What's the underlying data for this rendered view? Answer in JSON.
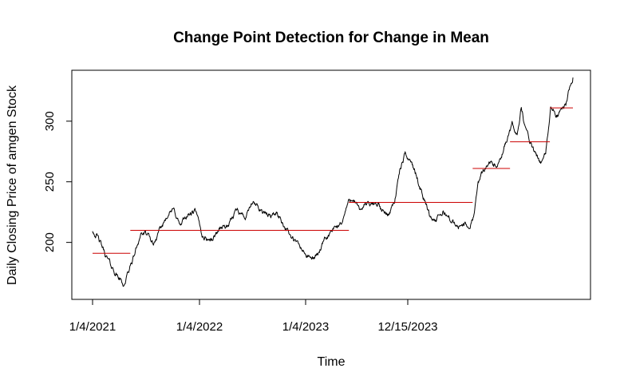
{
  "chart_data": {
    "type": "line",
    "title": "Change Point Detection for Change in Mean",
    "xlabel": "Time",
    "ylabel": "Daily Closing Price of amgen Stock",
    "x_ticks": [
      "1/4/2021",
      "1/4/2022",
      "1/4/2023",
      "12/15/2023"
    ],
    "y_ticks": [
      200,
      250,
      300
    ],
    "ylim": [
      153,
      342
    ],
    "grid": false,
    "colors": {
      "series": "#000000",
      "segment_means": "#cc0000"
    },
    "series": [
      {
        "values": [
          [
            0,
            210
          ],
          [
            10,
            206
          ],
          [
            20,
            198
          ],
          [
            30,
            190
          ],
          [
            45,
            180
          ],
          [
            60,
            172
          ],
          [
            75,
            165
          ],
          [
            85,
            175
          ],
          [
            100,
            190
          ],
          [
            115,
            208
          ],
          [
            130,
            206
          ],
          [
            145,
            198
          ],
          [
            165,
            212
          ],
          [
            180,
            225
          ],
          [
            195,
            226
          ],
          [
            210,
            213
          ],
          [
            225,
            222
          ],
          [
            245,
            225
          ],
          [
            262,
            205
          ],
          [
            285,
            202
          ],
          [
            305,
            213
          ],
          [
            325,
            213
          ],
          [
            345,
            229
          ],
          [
            365,
            220
          ],
          [
            380,
            232
          ],
          [
            398,
            228
          ],
          [
            418,
            222
          ],
          [
            440,
            224
          ],
          [
            458,
            214
          ],
          [
            475,
            203
          ],
          [
            492,
            197
          ],
          [
            508,
            190
          ],
          [
            522,
            186
          ],
          [
            536,
            190
          ],
          [
            552,
            200
          ],
          [
            568,
            208
          ],
          [
            582,
            212
          ],
          [
            596,
            218
          ],
          [
            608,
            232
          ],
          [
            622,
            238
          ],
          [
            636,
            225
          ],
          [
            650,
            232
          ],
          [
            665,
            230
          ],
          [
            680,
            233
          ],
          [
            690,
            225
          ],
          [
            705,
            223
          ],
          [
            720,
            235
          ],
          [
            733,
            260
          ],
          [
            745,
            272
          ],
          [
            758,
            268
          ],
          [
            772,
            255
          ],
          [
            788,
            239
          ],
          [
            804,
            222
          ],
          [
            820,
            218
          ],
          [
            836,
            225
          ],
          [
            852,
            220
          ],
          [
            868,
            212
          ],
          [
            884,
            215
          ],
          [
            900,
            212
          ],
          [
            910,
            225
          ],
          [
            918,
            250
          ],
          [
            930,
            258
          ],
          [
            945,
            268
          ],
          [
            960,
            262
          ],
          [
            975,
            268
          ],
          [
            985,
            282
          ],
          [
            1000,
            296
          ],
          [
            1012,
            290
          ],
          [
            1022,
            312
          ],
          [
            1030,
            296
          ],
          [
            1042,
            284
          ],
          [
            1055,
            272
          ],
          [
            1068,
            266
          ],
          [
            1080,
            272
          ],
          [
            1092,
            312
          ],
          [
            1105,
            303
          ],
          [
            1118,
            308
          ],
          [
            1128,
            312
          ],
          [
            1138,
            330
          ],
          [
            1145,
            336
          ]
        ]
      }
    ],
    "segment_means": [
      {
        "x_start": 0,
        "x_end": 90,
        "mean": 191
      },
      {
        "x_start": 90,
        "x_end": 611,
        "mean": 210
      },
      {
        "x_start": 611,
        "x_end": 906,
        "mean": 233
      },
      {
        "x_start": 906,
        "x_end": 995,
        "mean": 261
      },
      {
        "x_start": 995,
        "x_end": 1090,
        "mean": 283
      },
      {
        "x_start": 1090,
        "x_end": 1145,
        "mean": 311
      }
    ]
  }
}
